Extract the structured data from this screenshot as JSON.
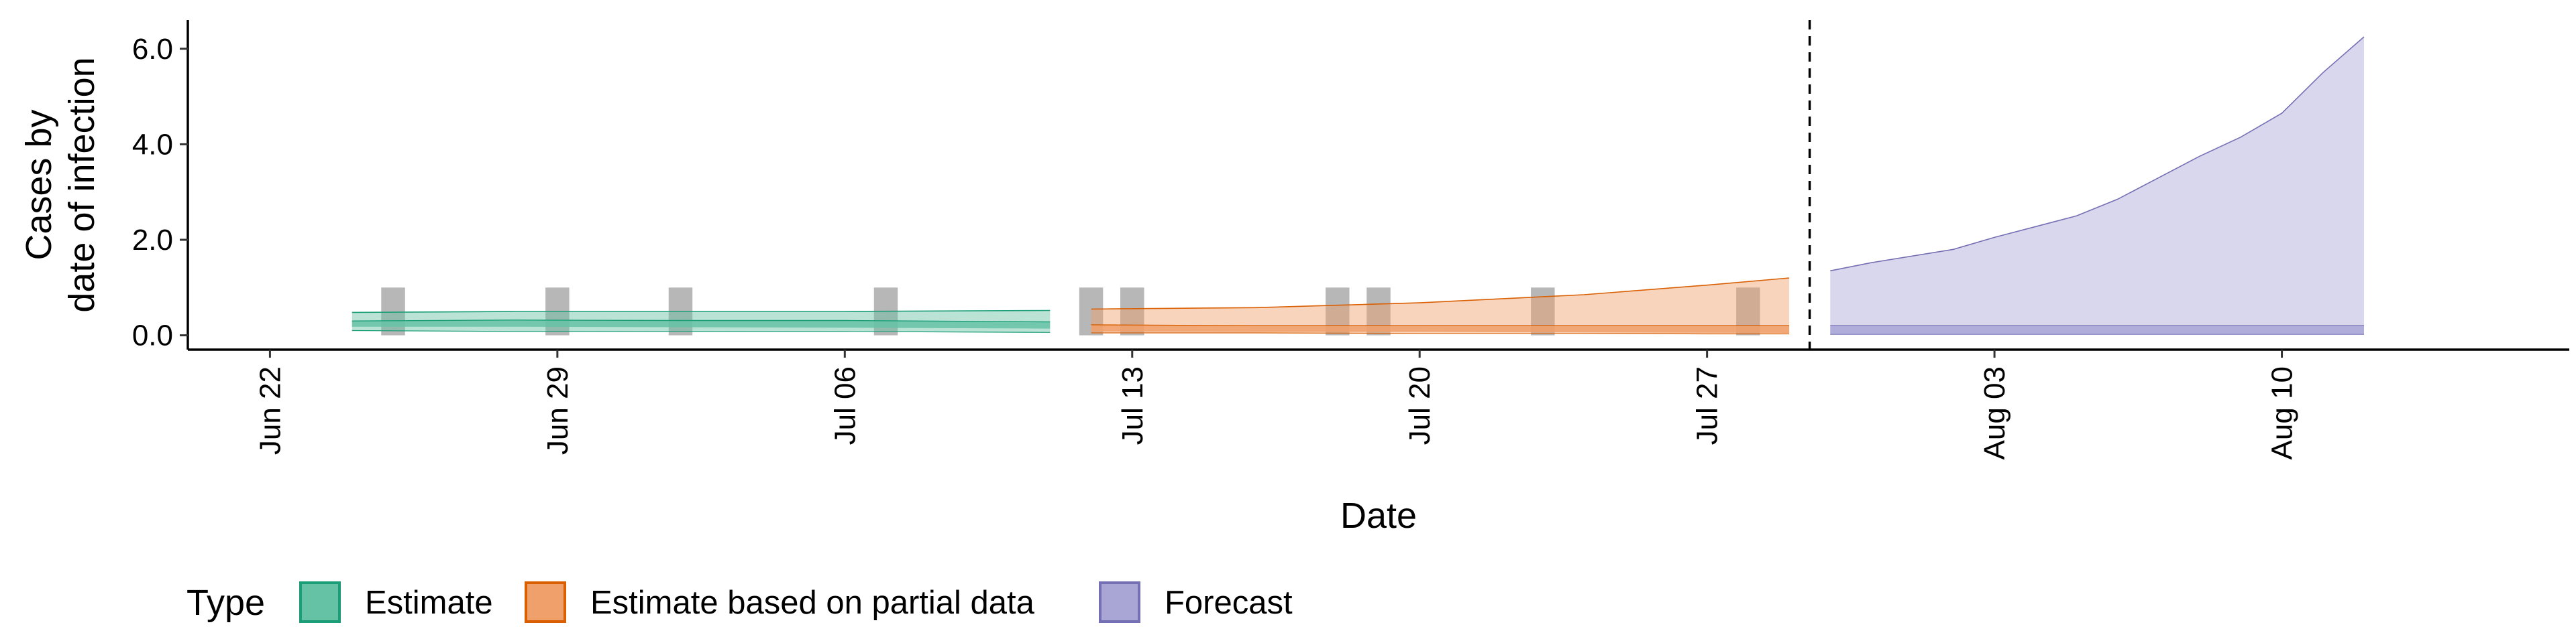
{
  "chart_data": {
    "type": "area",
    "title": "",
    "xlabel": "Date",
    "ylabel_lines": [
      "Cases by",
      "date of infection"
    ],
    "xlim": [
      "2020-06-20",
      "2020-08-17"
    ],
    "ylim": [
      -0.3,
      6.6
    ],
    "x_ticks": [
      {
        "date": "2020-06-22",
        "label": "Jun 22"
      },
      {
        "date": "2020-06-29",
        "label": "Jun 29"
      },
      {
        "date": "2020-07-06",
        "label": "Jul 06"
      },
      {
        "date": "2020-07-13",
        "label": "Jul 13"
      },
      {
        "date": "2020-07-20",
        "label": "Jul 20"
      },
      {
        "date": "2020-07-27",
        "label": "Jul 27"
      },
      {
        "date": "2020-08-03",
        "label": "Aug 03"
      },
      {
        "date": "2020-08-10",
        "label": "Aug 10"
      }
    ],
    "y_ticks": [
      {
        "value": 0.0,
        "label": "0.0"
      },
      {
        "value": 2.0,
        "label": "2.0"
      },
      {
        "value": 4.0,
        "label": "4.0"
      },
      {
        "value": 6.0,
        "label": "6.0"
      }
    ],
    "grid": false,
    "forecast_cutoff_date": "2020-07-29",
    "legend": {
      "title": "Type",
      "position": "bottom",
      "entries": [
        {
          "label": "Estimate",
          "fill": "#66c2a5",
          "stroke": "#1b9e77"
        },
        {
          "label": "Estimate based on partial data",
          "fill": "#f0a06a",
          "stroke": "#d95f02"
        },
        {
          "label": "Forecast",
          "fill": "#a9a6d6",
          "stroke": "#7570b3"
        }
      ]
    },
    "reported_cases": [
      {
        "date": "2020-06-25",
        "value": 1
      },
      {
        "date": "2020-06-29",
        "value": 1
      },
      {
        "date": "2020-07-02",
        "value": 1
      },
      {
        "date": "2020-07-07",
        "value": 1
      },
      {
        "date": "2020-07-12",
        "value": 1
      },
      {
        "date": "2020-07-13",
        "value": 1
      },
      {
        "date": "2020-07-18",
        "value": 1
      },
      {
        "date": "2020-07-19",
        "value": 1
      },
      {
        "date": "2020-07-23",
        "value": 1
      },
      {
        "date": "2020-07-28",
        "value": 1
      }
    ],
    "series": [
      {
        "name": "Estimate",
        "color": "#1b9e77",
        "fill": "#66c2a5",
        "outer": [
          {
            "date": "2020-06-24",
            "lower": 0.1,
            "upper": 0.48
          },
          {
            "date": "2020-06-28",
            "lower": 0.08,
            "upper": 0.5
          },
          {
            "date": "2020-07-02",
            "lower": 0.08,
            "upper": 0.5
          },
          {
            "date": "2020-07-06",
            "lower": 0.08,
            "upper": 0.5
          },
          {
            "date": "2020-07-11",
            "lower": 0.06,
            "upper": 0.52
          }
        ],
        "inner": [
          {
            "date": "2020-06-24",
            "lower": 0.18,
            "upper": 0.3
          },
          {
            "date": "2020-06-28",
            "lower": 0.18,
            "upper": 0.32
          },
          {
            "date": "2020-07-02",
            "lower": 0.17,
            "upper": 0.31
          },
          {
            "date": "2020-07-06",
            "lower": 0.16,
            "upper": 0.31
          },
          {
            "date": "2020-07-11",
            "lower": 0.14,
            "upper": 0.28
          }
        ]
      },
      {
        "name": "Estimate based on partial data",
        "color": "#d95f02",
        "fill": "#f0a06a",
        "outer": [
          {
            "date": "2020-07-12",
            "lower": 0.05,
            "upper": 0.55
          },
          {
            "date": "2020-07-16",
            "lower": 0.05,
            "upper": 0.58
          },
          {
            "date": "2020-07-20",
            "lower": 0.04,
            "upper": 0.68
          },
          {
            "date": "2020-07-24",
            "lower": 0.04,
            "upper": 0.85
          },
          {
            "date": "2020-07-27",
            "lower": 0.03,
            "upper": 1.05
          },
          {
            "date": "2020-07-29",
            "lower": 0.03,
            "upper": 1.2
          }
        ],
        "inner": [
          {
            "date": "2020-07-12",
            "lower": 0.08,
            "upper": 0.22
          },
          {
            "date": "2020-07-16",
            "lower": 0.07,
            "upper": 0.2
          },
          {
            "date": "2020-07-20",
            "lower": 0.07,
            "upper": 0.2
          },
          {
            "date": "2020-07-24",
            "lower": 0.06,
            "upper": 0.2
          },
          {
            "date": "2020-07-29",
            "lower": 0.05,
            "upper": 0.2
          }
        ]
      },
      {
        "name": "Forecast",
        "color": "#7570b3",
        "fill": "#a9a6d6",
        "outer": [
          {
            "date": "2020-07-30",
            "lower": 0.02,
            "upper": 1.35
          },
          {
            "date": "2020-07-31",
            "lower": 0.02,
            "upper": 1.52
          },
          {
            "date": "2020-08-02",
            "lower": 0.02,
            "upper": 1.8
          },
          {
            "date": "2020-08-03",
            "lower": 0.02,
            "upper": 2.05
          },
          {
            "date": "2020-08-05",
            "lower": 0.02,
            "upper": 2.5
          },
          {
            "date": "2020-08-06",
            "lower": 0.02,
            "upper": 2.85
          },
          {
            "date": "2020-08-07",
            "lower": 0.02,
            "upper": 3.3
          },
          {
            "date": "2020-08-08",
            "lower": 0.02,
            "upper": 3.75
          },
          {
            "date": "2020-08-09",
            "lower": 0.02,
            "upper": 4.15
          },
          {
            "date": "2020-08-10",
            "lower": 0.02,
            "upper": 4.65
          },
          {
            "date": "2020-08-11",
            "lower": 0.02,
            "upper": 5.5
          },
          {
            "date": "2020-08-12",
            "lower": 0.02,
            "upper": 6.25
          }
        ],
        "inner": [
          {
            "date": "2020-07-30",
            "lower": 0.03,
            "upper": 0.2
          },
          {
            "date": "2020-08-03",
            "lower": 0.03,
            "upper": 0.2
          },
          {
            "date": "2020-08-12",
            "lower": 0.03,
            "upper": 0.2
          }
        ]
      }
    ]
  }
}
